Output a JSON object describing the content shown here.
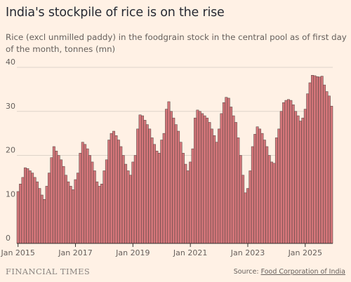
{
  "header": {
    "title": "India's stockpile of rice is on the rise",
    "subtitle": "Rice (excl unmilled paddy) in the foodgrain stock in the central pool as of first day of the month, tonnes (mn)"
  },
  "footer": {
    "brand": "FINANCIAL TIMES",
    "source_prefix": "Source: ",
    "source_name": "Food Corporation of India"
  },
  "colors": {
    "bar_fill": "#d4767a",
    "bar_stroke": "#4a3f3c",
    "background": "#fff1e5",
    "gridline": "#ded4ca"
  },
  "chart_data": {
    "type": "bar",
    "title": "India's stockpile of rice is on the rise",
    "ylabel": "tonnes (mn)",
    "ylim": [
      0,
      40
    ],
    "yticks": [
      0,
      10,
      20,
      30,
      40
    ],
    "xticks": [
      "Jan 2015",
      "Jan 2017",
      "Jan 2019",
      "Jan 2021",
      "Jan 2023",
      "Jan 2025"
    ],
    "grid": true,
    "start": "Jan 2015",
    "frequency": "monthly",
    "values": [
      11.8,
      13.5,
      15.0,
      17.2,
      17.0,
      16.5,
      16.0,
      15.0,
      14.0,
      12.5,
      11.0,
      10.0,
      13.0,
      16.0,
      19.5,
      22.0,
      21.0,
      20.0,
      19.0,
      17.5,
      15.5,
      14.0,
      13.0,
      12.2,
      14.5,
      16.0,
      20.5,
      23.0,
      22.5,
      21.5,
      20.0,
      18.5,
      16.5,
      14.0,
      13.0,
      13.5,
      16.5,
      19.0,
      23.5,
      25.0,
      25.5,
      24.5,
      23.5,
      22.0,
      20.0,
      18.0,
      16.5,
      15.5,
      18.5,
      20.0,
      26.0,
      29.2,
      29.0,
      28.0,
      27.0,
      26.0,
      24.0,
      22.5,
      21.0,
      20.5,
      23.5,
      25.0,
      30.5,
      32.2,
      30.0,
      28.5,
      27.0,
      25.5,
      23.0,
      20.5,
      18.0,
      16.5,
      18.5,
      21.5,
      28.5,
      30.3,
      30.0,
      29.5,
      29.0,
      28.5,
      27.5,
      26.0,
      24.5,
      23.0,
      26.0,
      29.5,
      32.0,
      33.2,
      33.0,
      31.0,
      29.0,
      27.5,
      24.0,
      20.0,
      15.5,
      11.5,
      12.5,
      16.5,
      22.0,
      24.8,
      26.5,
      26.0,
      25.0,
      23.5,
      22.0,
      20.0,
      18.5,
      18.2,
      24.0,
      26.0,
      30.0,
      32.0,
      32.5,
      32.7,
      32.5,
      31.5,
      30.0,
      29.0,
      27.8,
      28.5,
      30.5,
      34.0,
      36.5,
      38.2,
      38.1,
      37.9,
      37.8,
      38.0,
      36.0,
      34.5,
      33.5,
      31.2
    ]
  }
}
